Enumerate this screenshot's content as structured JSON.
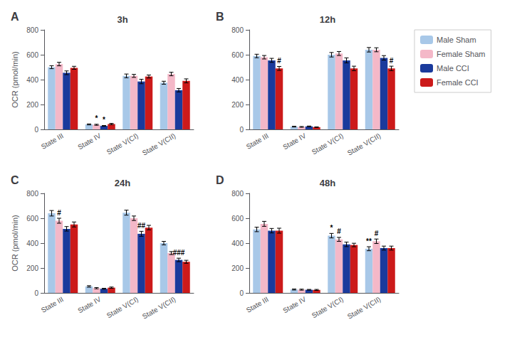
{
  "chart_data": [
    {
      "type": "bar",
      "title": "3h",
      "label": "A",
      "ylabel": "OCR (pmol/min)",
      "categories": [
        "State III",
        "State IV",
        "State V(CI)",
        "State V(CII)"
      ],
      "series": [
        {
          "name": "Male Sham",
          "color": "#a8c8e8",
          "values": [
            500,
            40,
            430,
            375
          ],
          "errors": [
            12,
            4,
            15,
            12
          ]
        },
        {
          "name": "Female Sham",
          "color": "#f4b8c8",
          "values": [
            525,
            37,
            430,
            445
          ],
          "errors": [
            14,
            4,
            12,
            14
          ]
        },
        {
          "name": "Male CCI",
          "color": "#1a3a9c",
          "values": [
            455,
            28,
            385,
            315
          ],
          "errors": [
            15,
            3,
            18,
            14
          ]
        },
        {
          "name": "Female CCI",
          "color": "#cc1a1a",
          "values": [
            495,
            43,
            425,
            390
          ],
          "errors": [
            12,
            5,
            12,
            16
          ]
        }
      ],
      "annotations": [
        {
          "category": "State IV",
          "series": "Female Sham",
          "text": "*"
        },
        {
          "category": "State IV",
          "series": "Male CCI",
          "text": "*"
        }
      ],
      "ylim": [
        0,
        800
      ],
      "yticks": [
        0,
        200,
        400,
        600,
        800
      ],
      "grid": false
    },
    {
      "type": "bar",
      "title": "12h",
      "label": "B",
      "categories": [
        "State III",
        "State IV",
        "State V(CI)",
        "State V(CII)"
      ],
      "series": [
        {
          "name": "Male Sham",
          "color": "#a8c8e8",
          "values": [
            590,
            22,
            600,
            640
          ],
          "errors": [
            14,
            3,
            18,
            18
          ]
        },
        {
          "name": "Female Sham",
          "color": "#f4b8c8",
          "values": [
            580,
            20,
            610,
            640
          ],
          "errors": [
            14,
            3,
            16,
            16
          ]
        },
        {
          "name": "Male CCI",
          "color": "#1a3a9c",
          "values": [
            555,
            24,
            555,
            575
          ],
          "errors": [
            16,
            3,
            20,
            18
          ]
        },
        {
          "name": "Female CCI",
          "color": "#cc1a1a",
          "values": [
            490,
            18,
            490,
            490
          ],
          "errors": [
            16,
            2,
            18,
            18
          ]
        }
      ],
      "annotations": [
        {
          "category": "State III",
          "series": "Female CCI",
          "text": "#"
        },
        {
          "category": "State V(CII)",
          "series": "Female CCI",
          "text": "#"
        }
      ],
      "ylim": [
        0,
        800
      ],
      "yticks": [
        0,
        200,
        400,
        600,
        800
      ],
      "grid": false,
      "legend": "right"
    },
    {
      "type": "bar",
      "title": "24h",
      "label": "C",
      "ylabel": "OCR (pmol/min)",
      "categories": [
        "State III",
        "State IV",
        "State V(CI)",
        "State V(CII)"
      ],
      "series": [
        {
          "name": "Male Sham",
          "color": "#a8c8e8",
          "values": [
            640,
            52,
            645,
            400
          ],
          "errors": [
            22,
            6,
            20,
            14
          ]
        },
        {
          "name": "Female Sham",
          "color": "#f4b8c8",
          "values": [
            580,
            38,
            600,
            320
          ],
          "errors": [
            20,
            5,
            18,
            12
          ]
        },
        {
          "name": "Male CCI",
          "color": "#1a3a9c",
          "values": [
            515,
            33,
            475,
            265
          ],
          "errors": [
            18,
            4,
            20,
            14
          ]
        },
        {
          "name": "Female CCI",
          "color": "#cc1a1a",
          "values": [
            550,
            42,
            525,
            250
          ],
          "errors": [
            20,
            5,
            18,
            12
          ]
        }
      ],
      "annotations": [
        {
          "category": "State III",
          "series": "Female Sham",
          "text": "#"
        },
        {
          "category": "State V(CI)",
          "series": "Male CCI",
          "text": "##"
        },
        {
          "category": "State V(CII)",
          "series": "Male CCI",
          "text": "###"
        }
      ],
      "ylim": [
        0,
        800
      ],
      "yticks": [
        0,
        200,
        400,
        600,
        800
      ],
      "grid": false
    },
    {
      "type": "bar",
      "title": "48h",
      "label": "D",
      "categories": [
        "State III",
        "State IV",
        "State V(CI)",
        "State V(CII)"
      ],
      "series": [
        {
          "name": "Male Sham",
          "color": "#a8c8e8",
          "values": [
            510,
            27,
            460,
            355
          ],
          "errors": [
            18,
            4,
            18,
            16
          ]
        },
        {
          "name": "Female Sham",
          "color": "#f4b8c8",
          "values": [
            555,
            26,
            430,
            415
          ],
          "errors": [
            20,
            4,
            16,
            18
          ]
        },
        {
          "name": "Male CCI",
          "color": "#1a3a9c",
          "values": [
            500,
            25,
            390,
            360
          ],
          "errors": [
            18,
            3,
            18,
            16
          ]
        },
        {
          "name": "Female CCI",
          "color": "#cc1a1a",
          "values": [
            500,
            24,
            385,
            360
          ],
          "errors": [
            20,
            4,
            14,
            16
          ]
        }
      ],
      "annotations": [
        {
          "category": "State V(CI)",
          "series": "Male Sham",
          "text": "*"
        },
        {
          "category": "State V(CI)",
          "series": "Female Sham",
          "text": "#"
        },
        {
          "category": "State V(CII)",
          "series": "Male Sham",
          "text": "**"
        },
        {
          "category": "State V(CII)",
          "series": "Female Sham",
          "text": "#"
        }
      ],
      "ylim": [
        0,
        800
      ],
      "yticks": [
        0,
        200,
        400,
        600,
        800
      ],
      "grid": false
    }
  ]
}
